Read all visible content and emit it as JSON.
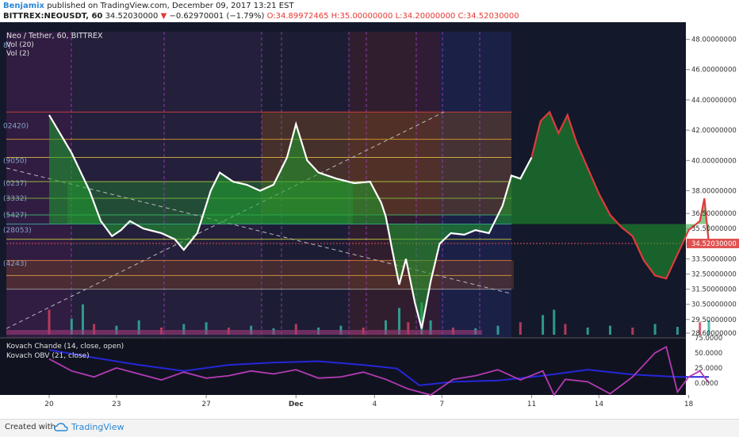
{
  "header": {
    "publisher": "Benjamix",
    "published_text": "published on TradingView.com, December 09, 2017 13:21 EST",
    "symbol_line": "BITTREX:NEOUSDT, 60",
    "last": "34.52030000",
    "change": "−0.62970001 (−1.79%)",
    "o": "O:34.89972465",
    "h": "H:35.00000000",
    "l": "L:34.20000000",
    "c": "C:34.52030000"
  },
  "legend": {
    "main": "Neo / Tether, 60, BITTREX",
    "vol20": "Vol (20)",
    "vol2": "Vol (2)",
    "osc1": "Kovach Chande (14, close, open)",
    "osc2": "Kovach OBV (21, close)"
  },
  "fib_labels": [
    "8]",
    "02420)",
    "(9050)",
    "(0237)",
    "(3332)",
    "(5427)",
    "(28053)",
    "(4243)"
  ],
  "colors": {
    "background": "#14182b",
    "price_line": "#ffffff",
    "up_fill": "#1fa02e",
    "down_fill": "#c8a23a",
    "red_line": "#e03b3b",
    "blue_line": "#2626d8",
    "purple_line": "#b43ab4"
  },
  "footer": {
    "created_with": "Created with",
    "brand": "TradingView"
  },
  "chart_data": {
    "type": "line",
    "x_tick_labels": [
      "20",
      "23",
      "27",
      "Dec",
      "4",
      "7",
      "11",
      "14",
      "18"
    ],
    "price_axis_labels": [
      "48.00000000",
      "46.00000000",
      "44.00000000",
      "42.00000000",
      "40.00000000",
      "38.00000000",
      "36.50000000",
      "35.50000000",
      "34.50000000",
      "33.50000000",
      "32.50000000",
      "31.50000000",
      "30.50000000",
      "29.50000000",
      "28.60000000"
    ],
    "oscillator_axis_labels": [
      "75.0000",
      "50.0000",
      "25.0000",
      "0.0000"
    ],
    "price_series": [
      {
        "d": 0,
        "v": 43.0
      },
      {
        "d": 1,
        "v": 40.5
      },
      {
        "d": 1.8,
        "v": 38.0
      },
      {
        "d": 2.3,
        "v": 36.0
      },
      {
        "d": 2.8,
        "v": 35.0
      },
      {
        "d": 3.2,
        "v": 35.4
      },
      {
        "d": 3.6,
        "v": 36.0
      },
      {
        "d": 4.2,
        "v": 35.5
      },
      {
        "d": 5.0,
        "v": 35.2
      },
      {
        "d": 5.6,
        "v": 34.8
      },
      {
        "d": 6.0,
        "v": 34.1
      },
      {
        "d": 6.6,
        "v": 35.2
      },
      {
        "d": 7.2,
        "v": 38.0
      },
      {
        "d": 7.6,
        "v": 39.2
      },
      {
        "d": 8.2,
        "v": 38.6
      },
      {
        "d": 8.8,
        "v": 38.4
      },
      {
        "d": 9.4,
        "v": 38.0
      },
      {
        "d": 10.0,
        "v": 38.4
      },
      {
        "d": 10.6,
        "v": 40.2
      },
      {
        "d": 11.0,
        "v": 42.4
      },
      {
        "d": 11.5,
        "v": 40.0
      },
      {
        "d": 12.0,
        "v": 39.2
      },
      {
        "d": 12.8,
        "v": 38.8
      },
      {
        "d": 13.6,
        "v": 38.5
      },
      {
        "d": 14.3,
        "v": 38.6
      },
      {
        "d": 14.8,
        "v": 37.2
      },
      {
        "d": 15.0,
        "v": 36.3
      },
      {
        "d": 15.3,
        "v": 34.0
      },
      {
        "d": 15.6,
        "v": 31.8
      },
      {
        "d": 15.9,
        "v": 33.5
      },
      {
        "d": 16.3,
        "v": 30.6
      },
      {
        "d": 16.6,
        "v": 28.9
      },
      {
        "d": 17.0,
        "v": 32.0
      },
      {
        "d": 17.4,
        "v": 34.5
      },
      {
        "d": 17.9,
        "v": 35.2
      },
      {
        "d": 18.5,
        "v": 35.1
      },
      {
        "d": 19.0,
        "v": 35.4
      },
      {
        "d": 19.6,
        "v": 35.2
      },
      {
        "d": 20.2,
        "v": 37.0
      },
      {
        "d": 20.6,
        "v": 39.0
      },
      {
        "d": 21.0,
        "v": 38.8
      },
      {
        "d": 21.5,
        "v": 40.2
      },
      {
        "d": 21.9,
        "v": 42.6
      },
      {
        "d": 22.3,
        "v": 43.2
      },
      {
        "d": 22.7,
        "v": 41.8
      },
      {
        "d": 23.1,
        "v": 43.0
      },
      {
        "d": 23.5,
        "v": 41.2
      },
      {
        "d": 24.0,
        "v": 39.5
      },
      {
        "d": 24.5,
        "v": 37.8
      },
      {
        "d": 25.0,
        "v": 36.4
      },
      {
        "d": 25.5,
        "v": 35.6
      },
      {
        "d": 26.0,
        "v": 35.0
      },
      {
        "d": 26.5,
        "v": 33.4
      },
      {
        "d": 27.0,
        "v": 32.4
      },
      {
        "d": 27.5,
        "v": 32.2
      },
      {
        "d": 28.0,
        "v": 33.8
      },
      {
        "d": 28.5,
        "v": 35.4
      },
      {
        "d": 29.0,
        "v": 36.0
      },
      {
        "d": 29.2,
        "v": 37.5
      },
      {
        "d": 29.4,
        "v": 34.5
      }
    ],
    "volume_series": [
      {
        "d": 0,
        "v": 70
      },
      {
        "d": 1,
        "v": 45
      },
      {
        "d": 1.5,
        "v": 85
      },
      {
        "d": 2,
        "v": 30
      },
      {
        "d": 3,
        "v": 25
      },
      {
        "d": 4,
        "v": 40
      },
      {
        "d": 5,
        "v": 20
      },
      {
        "d": 6,
        "v": 30
      },
      {
        "d": 7,
        "v": 35
      },
      {
        "d": 8,
        "v": 20
      },
      {
        "d": 9,
        "v": 25
      },
      {
        "d": 10,
        "v": 18
      },
      {
        "d": 11,
        "v": 30
      },
      {
        "d": 12,
        "v": 20
      },
      {
        "d": 13,
        "v": 25
      },
      {
        "d": 14,
        "v": 20
      },
      {
        "d": 15,
        "v": 40
      },
      {
        "d": 15.6,
        "v": 75
      },
      {
        "d": 16,
        "v": 35
      },
      {
        "d": 16.6,
        "v": 90
      },
      {
        "d": 17,
        "v": 40
      },
      {
        "d": 18,
        "v": 20
      },
      {
        "d": 19,
        "v": 18
      },
      {
        "d": 20,
        "v": 25
      },
      {
        "d": 21,
        "v": 35
      },
      {
        "d": 22,
        "v": 55
      },
      {
        "d": 22.5,
        "v": 70
      },
      {
        "d": 23,
        "v": 30
      },
      {
        "d": 24,
        "v": 20
      },
      {
        "d": 25,
        "v": 25
      },
      {
        "d": 26,
        "v": 20
      },
      {
        "d": 27,
        "v": 30
      },
      {
        "d": 28,
        "v": 22
      },
      {
        "d": 29,
        "v": 35
      },
      {
        "d": 29.4,
        "v": 40
      }
    ],
    "oscillator_blue": [
      {
        "d": 0,
        "v": 55
      },
      {
        "d": 2,
        "v": 42
      },
      {
        "d": 4,
        "v": 30
      },
      {
        "d": 6,
        "v": 20
      },
      {
        "d": 8,
        "v": 30
      },
      {
        "d": 10,
        "v": 34
      },
      {
        "d": 12,
        "v": 36
      },
      {
        "d": 14,
        "v": 30
      },
      {
        "d": 15.5,
        "v": 24
      },
      {
        "d": 16.5,
        "v": -4
      },
      {
        "d": 18,
        "v": 2
      },
      {
        "d": 20,
        "v": 4
      },
      {
        "d": 22,
        "v": 12
      },
      {
        "d": 24,
        "v": 22
      },
      {
        "d": 26,
        "v": 14
      },
      {
        "d": 28,
        "v": 10
      },
      {
        "d": 29.4,
        "v": 10
      }
    ],
    "oscillator_purple": [
      {
        "d": 0,
        "v": 40
      },
      {
        "d": 1,
        "v": 20
      },
      {
        "d": 2,
        "v": 10
      },
      {
        "d": 3,
        "v": 25
      },
      {
        "d": 4,
        "v": 15
      },
      {
        "d": 5,
        "v": 5
      },
      {
        "d": 6,
        "v": 18
      },
      {
        "d": 7,
        "v": 8
      },
      {
        "d": 8,
        "v": 12
      },
      {
        "d": 9,
        "v": 20
      },
      {
        "d": 10,
        "v": 15
      },
      {
        "d": 11,
        "v": 22
      },
      {
        "d": 12,
        "v": 8
      },
      {
        "d": 13,
        "v": 10
      },
      {
        "d": 14,
        "v": 18
      },
      {
        "d": 15,
        "v": 6
      },
      {
        "d": 16,
        "v": -10
      },
      {
        "d": 17,
        "v": -20
      },
      {
        "d": 18,
        "v": 6
      },
      {
        "d": 19,
        "v": 12
      },
      {
        "d": 20,
        "v": 22
      },
      {
        "d": 21,
        "v": 5
      },
      {
        "d": 22,
        "v": 20
      },
      {
        "d": 22.5,
        "v": -20
      },
      {
        "d": 23,
        "v": 6
      },
      {
        "d": 24,
        "v": 2
      },
      {
        "d": 25,
        "v": -18
      },
      {
        "d": 26,
        "v": 10
      },
      {
        "d": 27,
        "v": 50
      },
      {
        "d": 27.5,
        "v": 60
      },
      {
        "d": 28,
        "v": -15
      },
      {
        "d": 28.5,
        "v": 10
      },
      {
        "d": 29,
        "v": 20
      },
      {
        "d": 29.4,
        "v": 0
      }
    ],
    "fib_levels": [
      43.2,
      41.4,
      40.2,
      38.6,
      37.5,
      36.4,
      35.8,
      34.8,
      33.4,
      32.4,
      31.5
    ],
    "current_price": 34.52,
    "y_range_price": [
      28.6,
      48.5
    ],
    "y_range_osc": [
      -20,
      75
    ]
  }
}
